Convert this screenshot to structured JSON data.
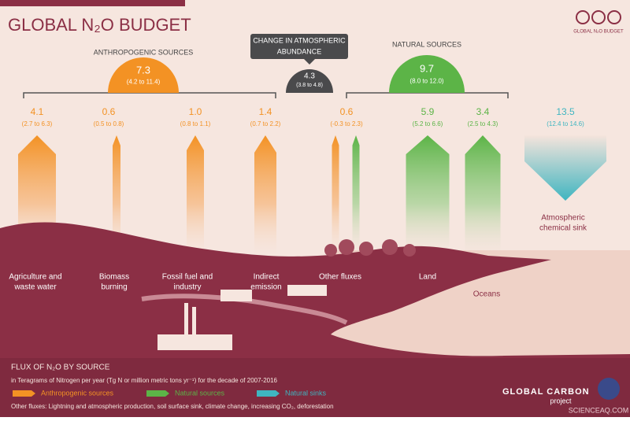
{
  "header": {
    "title": "GLOBAL N₂O BUDGET",
    "badge": "GLOBAL N₂O BUDGET"
  },
  "groups": [
    {
      "label": "ANTHROPOGENIC SOURCES",
      "value": "7.3",
      "range": "(4.2 to 11.4)",
      "color": "#f39224"
    },
    {
      "label": [
        "CHANGE IN ATMOSPHERIC",
        "ABUNDANCE"
      ],
      "value": "4.3",
      "range": "(3.8 to 4.8)",
      "color": "#4a4a4c"
    },
    {
      "label": "NATURAL SOURCES",
      "value": "9.7",
      "range": "(8.0 to 12.0)",
      "color": "#5cb447"
    }
  ],
  "fluxes": [
    {
      "value": "4.1",
      "range": "(2.7 to 6.3)",
      "label": [
        "Agriculture and",
        "waste water"
      ],
      "color": "#f39224"
    },
    {
      "value": "0.6",
      "range": "(0.5 to 0.8)",
      "label": [
        "Biomass",
        "burning"
      ],
      "color": "#f39224"
    },
    {
      "value": "1.0",
      "range": "(0.8 to 1.1)",
      "label": [
        "Fossil fuel and",
        "industry"
      ],
      "color": "#f39224"
    },
    {
      "value": "1.4",
      "range": "(0.7 to 2.2)",
      "label": [
        "Indirect",
        "emission"
      ],
      "color": "#f39224"
    },
    {
      "value": "0.6",
      "range": "(-0.3 to 2.3)",
      "label": [
        "Other fluxes"
      ],
      "color": "#f39224"
    },
    {
      "value": "5.9",
      "range": "(5.2 to 6.6)",
      "label": [
        "Land"
      ],
      "color": "#5cb447"
    },
    {
      "value": "3.4",
      "range": "(2.5 to 4.3)",
      "label": [
        "Oceans"
      ],
      "color": "#5cb447"
    },
    {
      "value": "13.5",
      "range": "(12.4 to 14.6)",
      "label": [
        "Atmospheric",
        "chemical sink"
      ],
      "color": "#3fb5c0"
    }
  ],
  "legend": {
    "title": "FLUX OF N₂O BY SOURCE",
    "subtitle": "in Teragrams of Nitrogen per year (Tg N or million metric tons yr⁻¹) for the decade of 2007-2016",
    "items": [
      {
        "label": "Anthropogenic sources",
        "color": "#f39224"
      },
      {
        "label": "Natural sources",
        "color": "#5cb447"
      },
      {
        "label": "Natural sinks",
        "color": "#3fb5c0"
      }
    ],
    "note": "Other fluxes: Lightning and atmospheric production, soil surface sink, climate change, increasing CO₂, deforestation"
  },
  "footer": {
    "logo": "GLOBAL CARBON",
    "logo_sub": "project",
    "watermark": "SCIENCEAQ.COM"
  }
}
